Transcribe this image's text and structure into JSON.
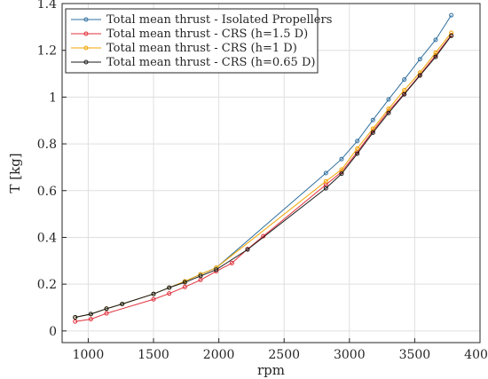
{
  "chart_data": {
    "type": "line",
    "xlabel": "rpm",
    "ylabel": "T [kg]",
    "xlim": [
      800,
      4000
    ],
    "ylim": [
      -0.05,
      1.4
    ],
    "xticks": [
      1000,
      1500,
      2000,
      2500,
      3000,
      3500,
      4000
    ],
    "xtick_labels": [
      "1000",
      "1500",
      "2000",
      "2500",
      "3000",
      "3500",
      "4000"
    ],
    "yticks": [
      0,
      0.2,
      0.4,
      0.6,
      0.8,
      1.0,
      1.2,
      1.4
    ],
    "ytick_labels": [
      "0",
      "0.2",
      "0.4",
      "0.6",
      "0.8",
      "1",
      "1.2",
      "1.4"
    ],
    "grid": true,
    "legend_position": "top-left",
    "series": [
      {
        "name": "Total mean thrust - Isolated Propellers",
        "color": "#2f6f9f",
        "x": [
          900,
          1020,
          1140,
          1260,
          1500,
          1620,
          1740,
          1860,
          1980,
          2820,
          2940,
          3060,
          3180,
          3300,
          3420,
          3540,
          3660,
          3780
        ],
        "y": [
          0.058,
          0.072,
          0.095,
          0.115,
          0.158,
          0.185,
          0.212,
          0.242,
          0.27,
          0.675,
          0.735,
          0.812,
          0.902,
          0.99,
          1.075,
          1.162,
          1.245,
          1.35
        ]
      },
      {
        "name": "Total mean thrust - CRS (h=1.5 D)",
        "color": "#e0303b",
        "x": [
          900,
          1020,
          1140,
          1500,
          1620,
          1740,
          1860,
          1980,
          2100,
          2220,
          2340,
          2820,
          2940,
          3060,
          3180,
          3300,
          3420,
          3540,
          3660,
          3780
        ],
        "y": [
          0.04,
          0.05,
          0.075,
          0.135,
          0.16,
          0.188,
          0.218,
          0.255,
          0.29,
          0.35,
          0.405,
          0.625,
          0.68,
          0.765,
          0.855,
          0.94,
          1.015,
          1.095,
          1.178,
          1.265
        ]
      },
      {
        "name": "Total mean thrust - CRS (h=1 D)",
        "color": "#f0a500",
        "x": [
          900,
          1020,
          1140,
          1260,
          1500,
          1620,
          1740,
          1860,
          1980,
          2820,
          2940,
          3060,
          3180,
          3300,
          3420,
          3540,
          3660,
          3780
        ],
        "y": [
          0.058,
          0.072,
          0.095,
          0.115,
          0.158,
          0.185,
          0.212,
          0.242,
          0.27,
          0.64,
          0.69,
          0.78,
          0.865,
          0.95,
          1.03,
          1.105,
          1.19,
          1.275
        ]
      },
      {
        "name": "Total mean thrust - CRS (h=0.65 D)",
        "color": "#1a1a1a",
        "x": [
          900,
          1020,
          1140,
          1260,
          1500,
          1620,
          1740,
          1860,
          1980,
          2220,
          2820,
          2940,
          3060,
          3180,
          3300,
          3420,
          3540,
          3660,
          3780
        ],
        "y": [
          0.058,
          0.072,
          0.095,
          0.115,
          0.158,
          0.185,
          0.208,
          0.235,
          0.262,
          0.348,
          0.61,
          0.672,
          0.758,
          0.848,
          0.932,
          1.012,
          1.092,
          1.172,
          1.262
        ]
      }
    ]
  }
}
